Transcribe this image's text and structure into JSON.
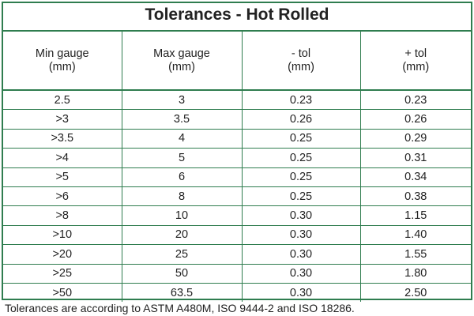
{
  "title": "Tolerances - Hot Rolled",
  "colors": {
    "border": "#2f7d4f",
    "text": "#222222"
  },
  "columns": [
    {
      "label": "Min gauge",
      "unit": "(mm)"
    },
    {
      "label": "Max gauge",
      "unit": "(mm)"
    },
    {
      "label": "- tol",
      "unit": "(mm)"
    },
    {
      "label": "+ tol",
      "unit": "(mm)"
    }
  ],
  "rows": [
    [
      "2.5",
      "3",
      "0.23",
      "0.23"
    ],
    [
      ">3",
      "3.5",
      "0.26",
      "0.26"
    ],
    [
      ">3.5",
      "4",
      "0.25",
      "0.29"
    ],
    [
      ">4",
      "5",
      "0.25",
      "0.31"
    ],
    [
      ">5",
      "6",
      "0.25",
      "0.34"
    ],
    [
      ">6",
      "8",
      "0.25",
      "0.38"
    ],
    [
      ">8",
      "10",
      "0.30",
      "1.15"
    ],
    [
      ">10",
      "20",
      "0.30",
      "1.40"
    ],
    [
      ">20",
      "25",
      "0.30",
      "1.55"
    ],
    [
      ">25",
      "50",
      "0.30",
      "1.80"
    ],
    [
      ">50",
      "63.5",
      "0.30",
      "2.50"
    ]
  ],
  "footnote": "Tolerances are according to ASTM A480M, ISO 9444-2 and ISO 18286."
}
